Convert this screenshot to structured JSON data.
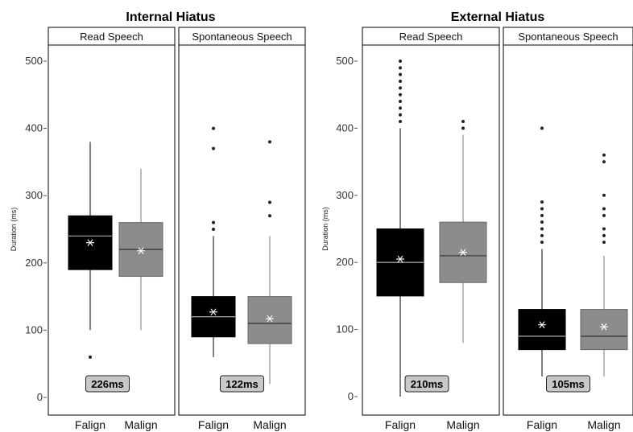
{
  "chart_data": [
    {
      "type": "box",
      "title": "Internal Hiatus",
      "ylabel": "Duration (ms)",
      "ylim": [
        0,
        500
      ],
      "yticks": [
        0,
        100,
        200,
        300,
        400,
        500
      ],
      "categories": [
        "Falign",
        "Malign"
      ],
      "colors": [
        "#000000",
        "#8c8c8c"
      ],
      "panels": [
        {
          "label": "Read Speech",
          "annotation": "226ms",
          "boxes": [
            {
              "category": "Falign",
              "whisker_low": 100,
              "q1": 190,
              "median": 240,
              "q3": 270,
              "whisker_high": 380,
              "mean": 230,
              "outliers": [
                60
              ]
            },
            {
              "category": "Malign",
              "whisker_low": 100,
              "q1": 180,
              "median": 220,
              "q3": 260,
              "whisker_high": 340,
              "mean": 218,
              "outliers": []
            }
          ]
        },
        {
          "label": "Spontaneous Speech",
          "annotation": "122ms",
          "boxes": [
            {
              "category": "Falign",
              "whisker_low": 60,
              "q1": 90,
              "median": 120,
              "q3": 150,
              "whisker_high": 240,
              "mean": 127,
              "outliers": [
                250,
                260,
                370,
                400
              ]
            },
            {
              "category": "Malign",
              "whisker_low": 20,
              "q1": 80,
              "median": 110,
              "q3": 150,
              "whisker_high": 240,
              "mean": 117,
              "outliers": [
                270,
                290,
                380
              ]
            }
          ]
        }
      ]
    },
    {
      "type": "box",
      "title": "External Hiatus",
      "ylabel": "Duration (ms)",
      "ylim": [
        0,
        500
      ],
      "yticks": [
        0,
        100,
        200,
        300,
        400,
        500
      ],
      "categories": [
        "Falign",
        "Malign"
      ],
      "colors": [
        "#000000",
        "#8c8c8c"
      ],
      "panels": [
        {
          "label": "Read Speech",
          "annotation": "210ms",
          "boxes": [
            {
              "category": "Falign",
              "whisker_low": 0,
              "q1": 150,
              "median": 200,
              "q3": 250,
              "whisker_high": 400,
              "mean": 205,
              "outliers": [
                410,
                420,
                430,
                440,
                450,
                460,
                470,
                480,
                490,
                500
              ]
            },
            {
              "category": "Malign",
              "whisker_low": 80,
              "q1": 170,
              "median": 210,
              "q3": 260,
              "whisker_high": 390,
              "mean": 215,
              "outliers": [
                400,
                410
              ]
            }
          ]
        },
        {
          "label": "Spontaneous Speech",
          "annotation": "105ms",
          "boxes": [
            {
              "category": "Falign",
              "whisker_low": 30,
              "q1": 70,
              "median": 90,
              "q3": 130,
              "whisker_high": 220,
              "mean": 107,
              "outliers": [
                230,
                240,
                250,
                260,
                270,
                280,
                290,
                400
              ]
            },
            {
              "category": "Malign",
              "whisker_low": 30,
              "q1": 70,
              "median": 90,
              "q3": 130,
              "whisker_high": 210,
              "mean": 104,
              "outliers": [
                230,
                240,
                250,
                270,
                280,
                300,
                350,
                360
              ]
            }
          ]
        }
      ]
    }
  ]
}
